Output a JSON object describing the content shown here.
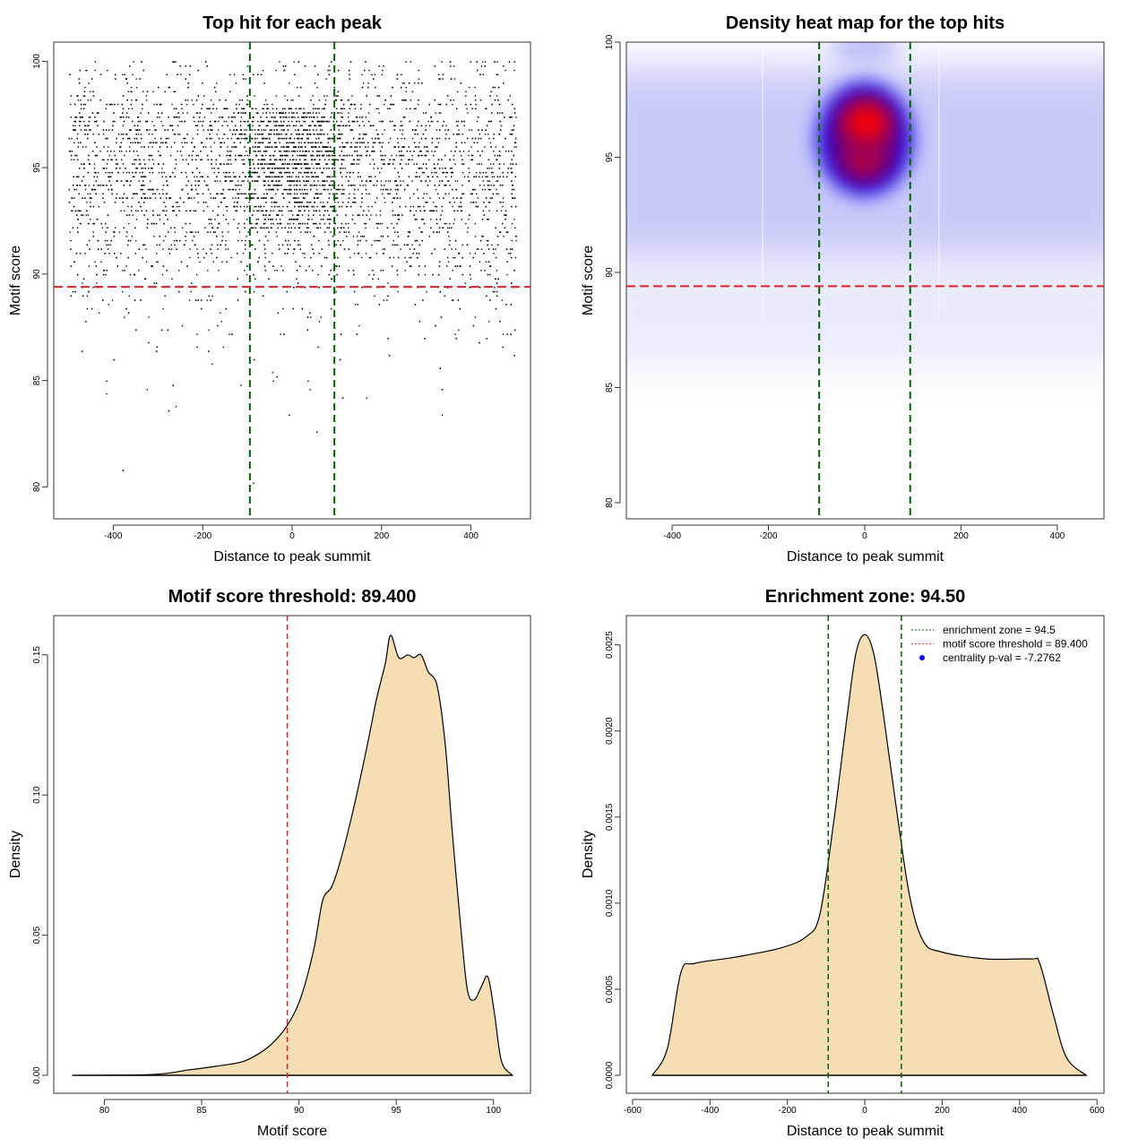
{
  "chart_data": [
    {
      "type": "scatter",
      "title": "Top hit for each peak",
      "xlabel": "Distance to peak summit",
      "ylabel": "Motif score",
      "xlim": [
        -533,
        533
      ],
      "ylim": [
        78.5,
        100.9
      ],
      "xticks": [
        -400,
        -200,
        0,
        200,
        400
      ],
      "yticks": [
        80,
        85,
        90,
        95,
        100
      ],
      "x_range_of_points": [
        -500,
        500
      ],
      "approx_points": 6000,
      "central_enrichment_score_range": [
        92,
        98
      ],
      "vlines": {
        "values": [
          -94.5,
          94.5
        ],
        "color": "#006400",
        "style": "dashed"
      },
      "hline": {
        "value": 89.4,
        "color": "#dd2222",
        "style": "dashed"
      }
    },
    {
      "type": "heatmap",
      "title": "Density heat map for the top hits",
      "xlabel": "Distance to peak summit",
      "ylabel": "Motif score",
      "xlim": [
        -495,
        497
      ],
      "ylim": [
        79.3,
        100
      ],
      "xticks": [
        -400,
        -200,
        0,
        200,
        400
      ],
      "yticks": [
        80,
        85,
        90,
        95,
        100
      ],
      "hotspot": {
        "x": 0,
        "y": 96.5
      },
      "colors": {
        "low": "#ffffff",
        "mid": "#0000ff",
        "high": "#ff0000"
      },
      "vlines": {
        "values": [
          -94.5,
          94.5
        ],
        "color": "#006400",
        "style": "dashed"
      },
      "hline": {
        "value": 89.4,
        "color": "#dd2222",
        "style": "dashed"
      }
    },
    {
      "type": "area",
      "title": "Motif score threshold: 89.400",
      "xlabel": "Motif score",
      "ylabel": "Density",
      "xlim": [
        77.4,
        101.9
      ],
      "ylim": [
        -0.0064,
        0.164
      ],
      "xticks": [
        "80",
        "85",
        "90",
        "95",
        "100"
      ],
      "yticks": [
        "0.00",
        "0.05",
        "0.10",
        "0.15"
      ],
      "fill": "#f5deb3",
      "x": [
        78.35,
        82.48,
        84.32,
        85.7,
        87.08,
        88.0,
        88.69,
        89.38,
        90.07,
        90.76,
        91.22,
        91.68,
        92.14,
        92.83,
        93.52,
        93.98,
        94.44,
        94.71,
        95.13,
        95.59,
        95.91,
        96.28,
        96.64,
        97.1,
        97.52,
        97.89,
        98.34,
        98.67,
        99.03,
        99.4,
        99.72,
        100.05,
        100.41,
        100.97
      ],
      "y": [
        0,
        0.0003,
        0.0019,
        0.0032,
        0.0048,
        0.008,
        0.0118,
        0.0176,
        0.0272,
        0.0448,
        0.0624,
        0.0672,
        0.0767,
        0.0959,
        0.118,
        0.134,
        0.147,
        0.157,
        0.149,
        0.15,
        0.149,
        0.15,
        0.144,
        0.139,
        0.118,
        0.086,
        0.051,
        0.03,
        0.027,
        0.032,
        0.035,
        0.022,
        0.005,
        0
      ],
      "vlines": {
        "values": [
          89.4
        ],
        "color": "#dd2222",
        "style": "dashed"
      }
    },
    {
      "type": "area",
      "title": "Enrichment zone: 94.50",
      "xlabel": "Distance to peak summit",
      "ylabel": "Density",
      "xlim": [
        -616,
        618
      ],
      "ylim": [
        -0.000104,
        0.00267
      ],
      "xticks": [
        "-600",
        "-400",
        "-200",
        "0",
        "200",
        "400",
        "600"
      ],
      "yticks": [
        "0.0000",
        "0.0005",
        "0.0010",
        "0.0015",
        "0.0020",
        "0.0025"
      ],
      "fill": "#f5deb3",
      "x": [
        -549,
        -510,
        -475,
        -440,
        -336,
        -220,
        -151,
        -116,
        -81,
        -46,
        -23,
        0,
        23,
        46,
        81,
        116,
        151,
        197,
        313,
        429,
        452,
        486,
        521,
        572
      ],
      "y": [
        0,
        0.000156,
        0.000598,
        0.00065,
        0.000686,
        0.000738,
        0.000806,
        0.000936,
        0.00146,
        0.00208,
        0.00245,
        0.00256,
        0.00245,
        0.00213,
        0.00156,
        0.00104,
        0.00078,
        0.000717,
        0.000676,
        0.000676,
        0.00065,
        0.000364,
        0.000104,
        0
      ],
      "vlines": {
        "values": [
          -94.5,
          94.5
        ],
        "color": "#006400",
        "style": "dashed"
      },
      "legend": {
        "placement": "top-right",
        "entries": [
          {
            "label": "enrichment zone = 94.5",
            "color": "#006400",
            "kind": "dotted-line"
          },
          {
            "label": "motif score threshold = 89.400",
            "color": "#ff4444",
            "kind": "dotted-line"
          },
          {
            "label": "centrality p-val = -7.2762",
            "color": "#0000ff",
            "kind": "point"
          }
        ]
      }
    }
  ]
}
